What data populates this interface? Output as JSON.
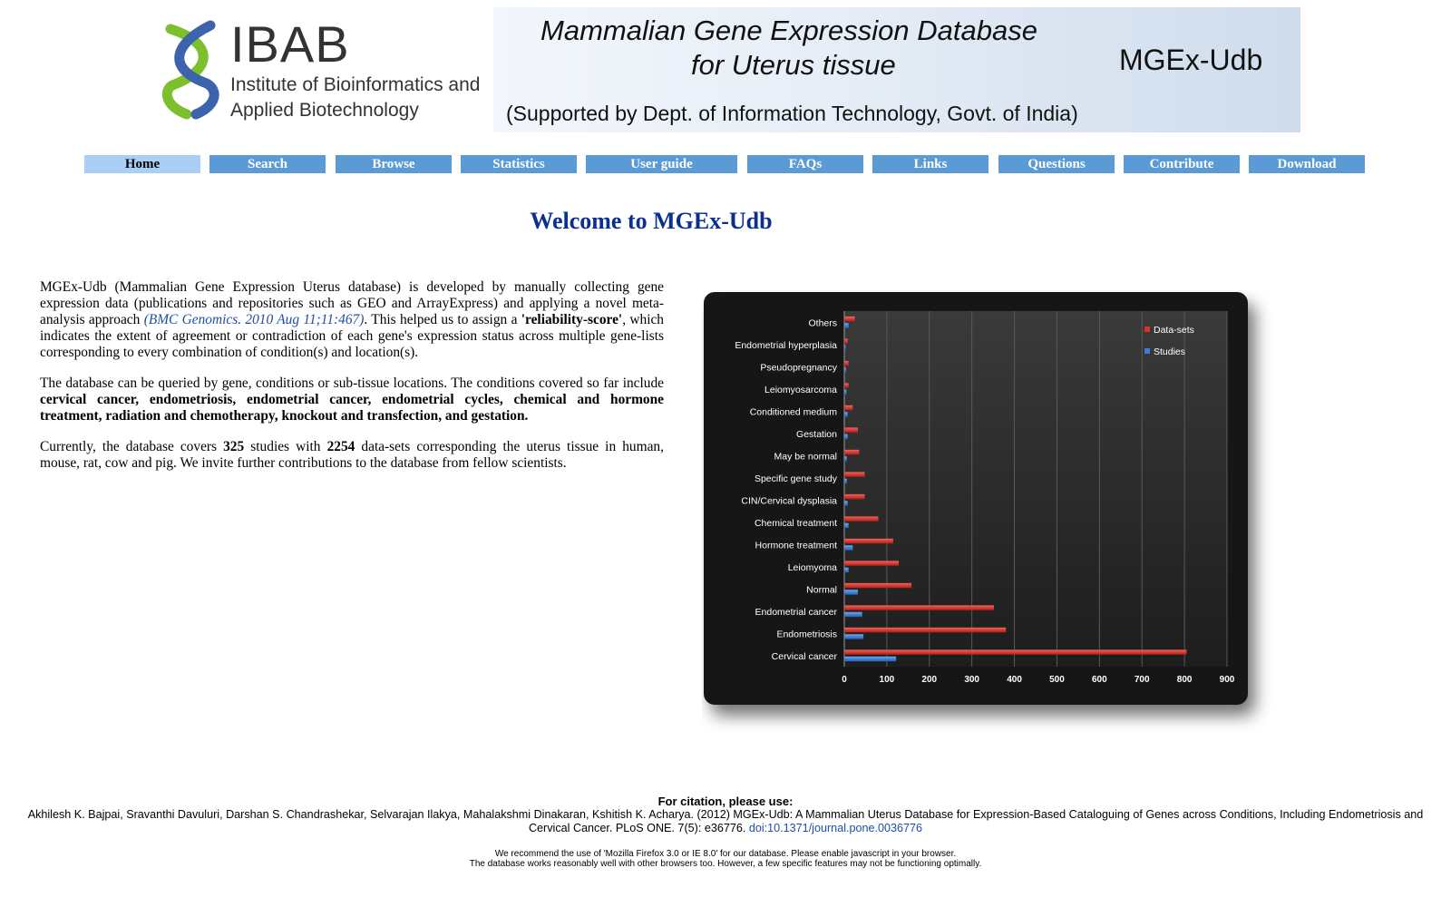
{
  "header": {
    "logo": {
      "name": "IBAB",
      "institute_line1": "Institute of Bioinformatics and",
      "institute_line2": "Applied Biotechnology"
    },
    "banner": {
      "line1": "Mammalian Gene Expression Database",
      "line2": "for Uterus tissue",
      "abbrev": "MGEx-Udb",
      "support": "(Supported by Dept. of Information Technology, Govt. of India)"
    }
  },
  "nav": {
    "items": [
      {
        "label": "Home",
        "active": true
      },
      {
        "label": "Search"
      },
      {
        "label": "Browse"
      },
      {
        "label": "Statistics"
      },
      {
        "label": "User guide"
      },
      {
        "label": "FAQs"
      },
      {
        "label": "Links"
      },
      {
        "label": "Questions"
      },
      {
        "label": "Contribute"
      },
      {
        "label": "Download"
      }
    ],
    "active_color": "#a9cff5",
    "color": "#5b9bd5"
  },
  "main": {
    "title": "Welcome to MGEx-Udb",
    "p1_pre": "MGEx-Udb (Mammalian Gene Expression Uterus database) is developed by manually collecting gene expression data (publications and repositories such as GEO and ArrayExpress) and applying a novel meta-analysis approach ",
    "p1_link": "(BMC Genomics. 2010 Aug 11;11:467)",
    "p1_mid": ". This helped us to assign a ",
    "p1_bold": "'reliability-score'",
    "p1_post": ", which indicates the extent of agreement or contradiction of each gene's expression status across multiple gene-lists corresponding to every combination of condition(s) and location(s).",
    "p2_pre": "The database can be queried by gene, conditions or sub-tissue locations. The conditions covered so far include ",
    "p2_bold": "cervical cancer, endometriosis, endometrial cancer, endometrial cycles, chemical and hormone treatment, radiation and chemotherapy, knockout and transfection, and gestation.",
    "p3_pre": "Currently, the database covers ",
    "p3_studies": "325",
    "p3_mid": " studies with ",
    "p3_datasets": "2254",
    "p3_post": " data-sets corresponding the uterus tissue in human, mouse, rat, cow and pig. We invite further contributions to the database from fellow scientists."
  },
  "chart_data": {
    "type": "bar",
    "orientation": "horizontal",
    "categories": [
      "Others",
      "Endometrial hyperplasia",
      "Pseudopregnancy",
      "Leiomyosarcoma",
      "Conditioned medium",
      "Gestation",
      "May be normal",
      "Specific gene study",
      "CIN/Cervical dysplasia",
      "Chemical treatment",
      "Hormone treatment",
      "Leiomyoma",
      "Normal",
      "Endometrial cancer",
      "Endometriosis",
      "Cervical cancer"
    ],
    "series": [
      {
        "name": "Data-sets",
        "color": "#d9342b",
        "values": [
          25,
          8,
          10,
          10,
          20,
          32,
          35,
          48,
          48,
          80,
          115,
          128,
          158,
          352,
          380,
          805
        ]
      },
      {
        "name": "Studies",
        "color": "#3a7fd6",
        "values": [
          10,
          3,
          4,
          5,
          8,
          8,
          6,
          6,
          8,
          10,
          20,
          10,
          32,
          42,
          45,
          122
        ]
      }
    ],
    "xlim": [
      0,
      900
    ],
    "xticks": [
      0,
      100,
      200,
      300,
      400,
      500,
      600,
      700,
      800,
      900
    ],
    "grid": true,
    "legend": "top-right"
  },
  "footer": {
    "cite_heading": "For citation, please use:",
    "cite_text": "Akhilesh K. Bajpai, Sravanthi Davuluri, Darshan S. Chandrashekar, Selvarajan Ilakya, Mahalakshmi Dinakaran, Kshitish K. Acharya. (2012) MGEx-Udb: A Mammalian Uterus Database for Expression-Based Cataloguing of Genes across Conditions, Including Endometriosis and Cervical Cancer. PLoS ONE. 7(5): e36776. ",
    "cite_doi": "doi:10.1371/journal.pone.0036776",
    "note1": "We recommend the use of 'Mozilla Firefox 3.0 or IE 8.0' for our database. Please enable javascript in your browser.",
    "note2": "The database works reasonably well with other browsers too. However, a few specific features may not be functioning optimally."
  }
}
